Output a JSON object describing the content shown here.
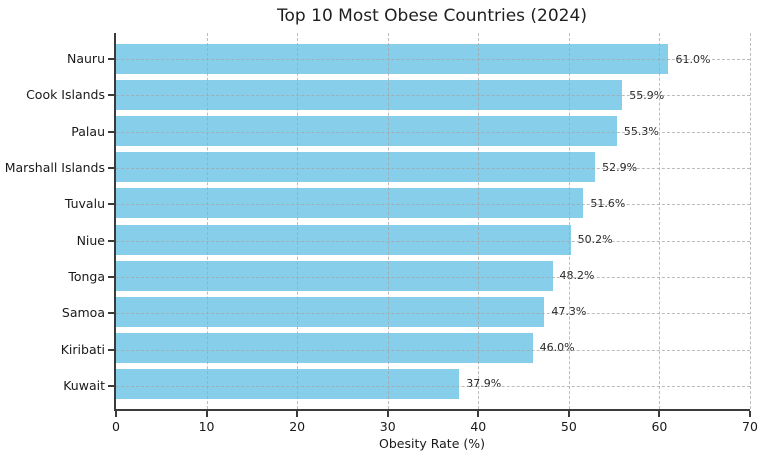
{
  "chart_data": {
    "type": "bar",
    "orientation": "horizontal",
    "title": "Top 10 Most Obese Countries (2024)",
    "xlabel": "Obesity Rate (%)",
    "ylabel": "",
    "categories": [
      "Nauru",
      "Cook Islands",
      "Palau",
      "Marshall Islands",
      "Tuvalu",
      "Niue",
      "Tonga",
      "Samoa",
      "Kiribati",
      "Kuwait"
    ],
    "values": [
      61.0,
      55.9,
      55.3,
      52.9,
      51.6,
      50.2,
      48.2,
      47.3,
      46.0,
      37.9
    ],
    "value_labels": [
      "61.0%",
      "55.9%",
      "55.3%",
      "52.9%",
      "51.6%",
      "50.2%",
      "48.2%",
      "47.3%",
      "46.0%",
      "37.9%"
    ],
    "xlim": [
      0,
      70
    ],
    "xticks": [
      0,
      10,
      20,
      30,
      40,
      50,
      60,
      70
    ],
    "bar_color": "#87CEEB",
    "grid": {
      "style": "dashed",
      "color": "#a5a5a5",
      "axes": "both",
      "above_bars": true
    },
    "spine_color": "#3b3b3b",
    "legend": "none"
  }
}
